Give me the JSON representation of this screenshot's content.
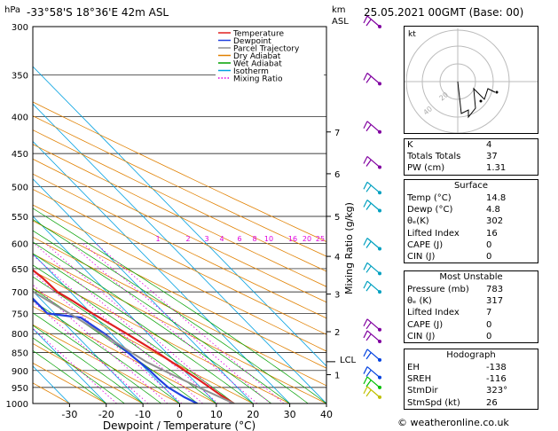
{
  "header": {
    "location": "-33°58'S 18°36'E 42m ASL",
    "datetime": "25.05.2021 00GMT (Base: 00)",
    "hpa_label": "hPa",
    "km_label": "km",
    "asl_label": "ASL"
  },
  "axes": {
    "xlabel": "Dewpoint / Temperature (°C)",
    "ylabel_right": "Mixing Ratio (g/kg)",
    "lcl_label": "LCL"
  },
  "legend": {
    "items": [
      {
        "label": "Temperature",
        "color": "#e02020"
      },
      {
        "label": "Dewpoint",
        "color": "#2040e0"
      },
      {
        "label": "Parcel Trajectory",
        "color": "#909090"
      },
      {
        "label": "Dry Adiabat",
        "color": "#e08000"
      },
      {
        "label": "Wet Adiabat",
        "color": "#00a000"
      },
      {
        "label": "Isotherm",
        "color": "#00a0e0"
      },
      {
        "label": "Mixing Ratio",
        "color": "#e000e0"
      }
    ]
  },
  "chart_data": {
    "type": "line",
    "pressure_levels": [
      300,
      350,
      400,
      450,
      500,
      550,
      600,
      650,
      700,
      750,
      800,
      850,
      900,
      950,
      1000
    ],
    "temp_ticks": [
      -30,
      -20,
      -10,
      0,
      10,
      20,
      30,
      40
    ],
    "xlim": [
      -40,
      40
    ],
    "ylim_hpa": [
      1000,
      300
    ],
    "height_km_ticks": [
      {
        "km": "1",
        "p": 912
      },
      {
        "km": "2",
        "p": 795
      },
      {
        "km": "3",
        "p": 705
      },
      {
        "km": "4",
        "p": 625
      },
      {
        "km": "5",
        "p": 550
      },
      {
        "km": "6",
        "p": 480
      },
      {
        "km": "7",
        "p": 420
      }
    ],
    "lcl_pressure": 875,
    "mixing_ratio_labels": [
      "1",
      "2",
      "3",
      "4",
      "6",
      "8",
      "10",
      "16",
      "20",
      "25"
    ],
    "series": [
      {
        "name": "Temperature",
        "color": "#e02020",
        "points": [
          [
            1000,
            14.8
          ],
          [
            975,
            13.5
          ],
          [
            950,
            12.5
          ],
          [
            925,
            11.5
          ],
          [
            900,
            10.2
          ],
          [
            850,
            7.5
          ],
          [
            800,
            4.2
          ],
          [
            750,
            0.3
          ],
          [
            720,
            -1.8
          ],
          [
            700,
            -3.5
          ],
          [
            670,
            -3.8
          ],
          [
            650,
            -4.5
          ],
          [
            620,
            -6.5
          ],
          [
            600,
            -8.5
          ],
          [
            550,
            -13.5
          ],
          [
            520,
            -17.5
          ],
          [
            500,
            -19.0
          ],
          [
            450,
            -24.5
          ],
          [
            400,
            -31.0
          ],
          [
            350,
            -38.5
          ],
          [
            300,
            -46.0
          ]
        ]
      },
      {
        "name": "Dewpoint",
        "color": "#2040e0",
        "points": [
          [
            1000,
            4.8
          ],
          [
            980,
            3.0
          ],
          [
            950,
            1.2
          ],
          [
            925,
            0.8
          ],
          [
            900,
            0.7
          ],
          [
            850,
            -0.5
          ],
          [
            800,
            -1.8
          ],
          [
            760,
            -4.0
          ],
          [
            750,
            -12.0
          ],
          [
            700,
            -12.0
          ],
          [
            680,
            -11.5
          ],
          [
            660,
            -21.0
          ],
          [
            640,
            -22.0
          ],
          [
            620,
            -14.0
          ],
          [
            600,
            -12.0
          ],
          [
            560,
            -12.5
          ],
          [
            530,
            -14.5
          ],
          [
            510,
            -19.0
          ],
          [
            450,
            -32.0
          ],
          [
            400,
            -35.0
          ],
          [
            350,
            -38.0
          ],
          [
            300,
            -48.0
          ]
        ]
      },
      {
        "name": "Parcel Trajectory",
        "color": "#909090",
        "points": [
          [
            1000,
            14.8
          ],
          [
            950,
            9.5
          ],
          [
            900,
            4.5
          ],
          [
            875,
            2.0
          ],
          [
            850,
            0.5
          ],
          [
            800,
            -2.5
          ],
          [
            750,
            -6.0
          ],
          [
            700,
            -10.0
          ],
          [
            650,
            -14.5
          ],
          [
            600,
            -19.5
          ],
          [
            550,
            -25.0
          ],
          [
            500,
            -31.5
          ],
          [
            450,
            -38.5
          ],
          [
            400,
            -46.5
          ],
          [
            350,
            -55.5
          ],
          [
            300,
            -66.0
          ]
        ]
      }
    ]
  },
  "hodograph": {
    "label": "kt",
    "ring_labels": [
      "20",
      "40"
    ]
  },
  "indices": {
    "rows": [
      {
        "k": "K",
        "v": "4"
      },
      {
        "k": "Totals Totals",
        "v": "37"
      },
      {
        "k": "PW (cm)",
        "v": "1.31"
      }
    ]
  },
  "surface": {
    "title": "Surface",
    "rows": [
      {
        "k": "Temp (°C)",
        "v": "14.8"
      },
      {
        "k": "Dewp (°C)",
        "v": "4.8"
      },
      {
        "k": "θₑ(K)",
        "v": "302"
      },
      {
        "k": "Lifted Index",
        "v": "16"
      },
      {
        "k": "CAPE (J)",
        "v": "0"
      },
      {
        "k": "CIN (J)",
        "v": "0"
      }
    ]
  },
  "most_unstable": {
    "title": "Most Unstable",
    "rows": [
      {
        "k": "Pressure (mb)",
        "v": "783"
      },
      {
        "k": "θₑ (K)",
        "v": "317"
      },
      {
        "k": "Lifted Index",
        "v": "7"
      },
      {
        "k": "CAPE (J)",
        "v": "0"
      },
      {
        "k": "CIN (J)",
        "v": "0"
      }
    ]
  },
  "hodograph_table": {
    "title": "Hodograph",
    "rows": [
      {
        "k": "EH",
        "v": "-138"
      },
      {
        "k": "SREH",
        "v": "-116"
      },
      {
        "k": "StmDir",
        "v": "323°"
      },
      {
        "k": "StmSpd (kt)",
        "v": "26"
      }
    ]
  },
  "credit": "© weatheronline.co.uk"
}
